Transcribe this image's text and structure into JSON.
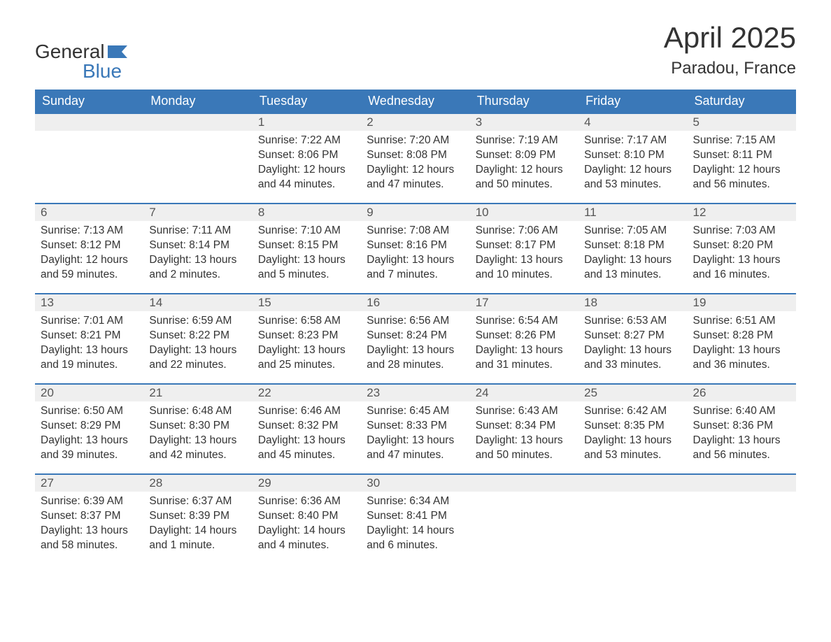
{
  "logo": {
    "line1": "General",
    "line2": "Blue"
  },
  "title": "April 2025",
  "location": "Paradou, France",
  "colors": {
    "header_bg": "#3a78b8",
    "header_text": "#ffffff",
    "daynum_bg": "#efefef",
    "row_border": "#3a78b8",
    "text": "#333333",
    "logo_blue": "#3a78b8"
  },
  "weekdays": [
    "Sunday",
    "Monday",
    "Tuesday",
    "Wednesday",
    "Thursday",
    "Friday",
    "Saturday"
  ],
  "weeks": [
    [
      null,
      null,
      {
        "day": "1",
        "sunrise": "7:22 AM",
        "sunset": "8:06 PM",
        "daylight": "12 hours and 44 minutes."
      },
      {
        "day": "2",
        "sunrise": "7:20 AM",
        "sunset": "8:08 PM",
        "daylight": "12 hours and 47 minutes."
      },
      {
        "day": "3",
        "sunrise": "7:19 AM",
        "sunset": "8:09 PM",
        "daylight": "12 hours and 50 minutes."
      },
      {
        "day": "4",
        "sunrise": "7:17 AM",
        "sunset": "8:10 PM",
        "daylight": "12 hours and 53 minutes."
      },
      {
        "day": "5",
        "sunrise": "7:15 AM",
        "sunset": "8:11 PM",
        "daylight": "12 hours and 56 minutes."
      }
    ],
    [
      {
        "day": "6",
        "sunrise": "7:13 AM",
        "sunset": "8:12 PM",
        "daylight": "12 hours and 59 minutes."
      },
      {
        "day": "7",
        "sunrise": "7:11 AM",
        "sunset": "8:14 PM",
        "daylight": "13 hours and 2 minutes."
      },
      {
        "day": "8",
        "sunrise": "7:10 AM",
        "sunset": "8:15 PM",
        "daylight": "13 hours and 5 minutes."
      },
      {
        "day": "9",
        "sunrise": "7:08 AM",
        "sunset": "8:16 PM",
        "daylight": "13 hours and 7 minutes."
      },
      {
        "day": "10",
        "sunrise": "7:06 AM",
        "sunset": "8:17 PM",
        "daylight": "13 hours and 10 minutes."
      },
      {
        "day": "11",
        "sunrise": "7:05 AM",
        "sunset": "8:18 PM",
        "daylight": "13 hours and 13 minutes."
      },
      {
        "day": "12",
        "sunrise": "7:03 AM",
        "sunset": "8:20 PM",
        "daylight": "13 hours and 16 minutes."
      }
    ],
    [
      {
        "day": "13",
        "sunrise": "7:01 AM",
        "sunset": "8:21 PM",
        "daylight": "13 hours and 19 minutes."
      },
      {
        "day": "14",
        "sunrise": "6:59 AM",
        "sunset": "8:22 PM",
        "daylight": "13 hours and 22 minutes."
      },
      {
        "day": "15",
        "sunrise": "6:58 AM",
        "sunset": "8:23 PM",
        "daylight": "13 hours and 25 minutes."
      },
      {
        "day": "16",
        "sunrise": "6:56 AM",
        "sunset": "8:24 PM",
        "daylight": "13 hours and 28 minutes."
      },
      {
        "day": "17",
        "sunrise": "6:54 AM",
        "sunset": "8:26 PM",
        "daylight": "13 hours and 31 minutes."
      },
      {
        "day": "18",
        "sunrise": "6:53 AM",
        "sunset": "8:27 PM",
        "daylight": "13 hours and 33 minutes."
      },
      {
        "day": "19",
        "sunrise": "6:51 AM",
        "sunset": "8:28 PM",
        "daylight": "13 hours and 36 minutes."
      }
    ],
    [
      {
        "day": "20",
        "sunrise": "6:50 AM",
        "sunset": "8:29 PM",
        "daylight": "13 hours and 39 minutes."
      },
      {
        "day": "21",
        "sunrise": "6:48 AM",
        "sunset": "8:30 PM",
        "daylight": "13 hours and 42 minutes."
      },
      {
        "day": "22",
        "sunrise": "6:46 AM",
        "sunset": "8:32 PM",
        "daylight": "13 hours and 45 minutes."
      },
      {
        "day": "23",
        "sunrise": "6:45 AM",
        "sunset": "8:33 PM",
        "daylight": "13 hours and 47 minutes."
      },
      {
        "day": "24",
        "sunrise": "6:43 AM",
        "sunset": "8:34 PM",
        "daylight": "13 hours and 50 minutes."
      },
      {
        "day": "25",
        "sunrise": "6:42 AM",
        "sunset": "8:35 PM",
        "daylight": "13 hours and 53 minutes."
      },
      {
        "day": "26",
        "sunrise": "6:40 AM",
        "sunset": "8:36 PM",
        "daylight": "13 hours and 56 minutes."
      }
    ],
    [
      {
        "day": "27",
        "sunrise": "6:39 AM",
        "sunset": "8:37 PM",
        "daylight": "13 hours and 58 minutes."
      },
      {
        "day": "28",
        "sunrise": "6:37 AM",
        "sunset": "8:39 PM",
        "daylight": "14 hours and 1 minute."
      },
      {
        "day": "29",
        "sunrise": "6:36 AM",
        "sunset": "8:40 PM",
        "daylight": "14 hours and 4 minutes."
      },
      {
        "day": "30",
        "sunrise": "6:34 AM",
        "sunset": "8:41 PM",
        "daylight": "14 hours and 6 minutes."
      },
      null,
      null,
      null
    ]
  ],
  "labels": {
    "sunrise": "Sunrise: ",
    "sunset": "Sunset: ",
    "daylight": "Daylight: "
  }
}
